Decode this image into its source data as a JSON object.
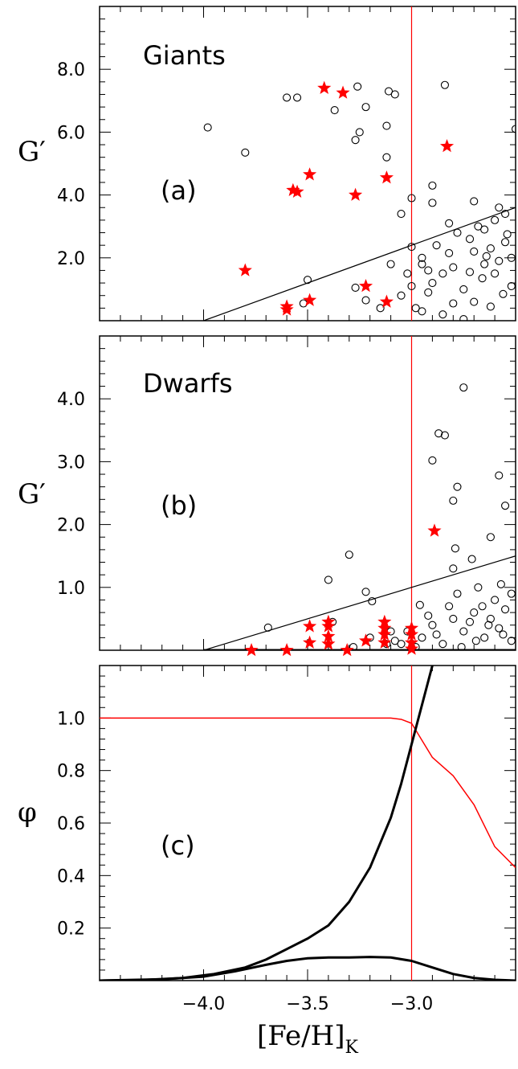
{
  "chart_data": [
    {
      "type": "scatter",
      "panel_label": "(a)",
      "annotation": "Giants",
      "ylabel": "G′",
      "xlim": [
        -4.5,
        -2.5
      ],
      "ylim": [
        0,
        10
      ],
      "yticks": [
        "2.0",
        "4.0",
        "6.0",
        "8.0"
      ],
      "ytick_values": [
        2,
        4,
        6,
        8
      ],
      "vline_x": -3.0,
      "boundary_line": [
        [
          -4.0,
          0.0
        ],
        [
          -2.5,
          3.6
        ]
      ],
      "series": [
        {
          "marker": "circle",
          "points": [
            [
              -3.98,
              6.15
            ],
            [
              -3.8,
              5.35
            ],
            [
              -3.6,
              7.1
            ],
            [
              -3.55,
              7.1
            ],
            [
              -3.37,
              6.7
            ],
            [
              -3.22,
              6.8
            ],
            [
              -3.26,
              7.45
            ],
            [
              -3.11,
              7.3
            ],
            [
              -3.08,
              7.2
            ],
            [
              -3.27,
              5.75
            ],
            [
              -3.25,
              6.0
            ],
            [
              -3.12,
              6.2
            ],
            [
              -3.12,
              5.2
            ],
            [
              -3.0,
              3.9
            ],
            [
              -2.84,
              7.5
            ],
            [
              -2.9,
              4.3
            ],
            [
              -2.9,
              3.75
            ],
            [
              -3.05,
              3.4
            ],
            [
              -2.5,
              6.1
            ],
            [
              -3.5,
              1.3
            ],
            [
              -3.27,
              1.05
            ],
            [
              -3.22,
              0.65
            ],
            [
              -3.52,
              0.55
            ],
            [
              -3.15,
              0.4
            ],
            [
              -3.0,
              2.35
            ],
            [
              -3.0,
              1.1
            ],
            [
              -2.95,
              2.0
            ],
            [
              -2.95,
              1.8
            ],
            [
              -2.85,
              1.5
            ],
            [
              -2.9,
              1.2
            ],
            [
              -2.8,
              1.7
            ],
            [
              -2.75,
              1.0
            ],
            [
              -2.7,
              2.2
            ],
            [
              -2.7,
              0.6
            ],
            [
              -2.65,
              1.8
            ],
            [
              -2.65,
              2.9
            ],
            [
              -2.6,
              3.2
            ],
            [
              -2.6,
              1.5
            ],
            [
              -2.55,
              2.5
            ],
            [
              -2.55,
              3.4
            ],
            [
              -2.52,
              1.1
            ],
            [
              -2.52,
              2.0
            ],
            [
              -2.58,
              3.6
            ],
            [
              -2.62,
              2.3
            ],
            [
              -2.68,
              3.0
            ],
            [
              -2.72,
              2.6
            ],
            [
              -2.78,
              2.8
            ],
            [
              -2.82,
              3.1
            ],
            [
              -2.88,
              2.4
            ],
            [
              -2.92,
              0.9
            ],
            [
              -2.98,
              0.4
            ],
            [
              -3.02,
              1.5
            ],
            [
              -3.05,
              0.8
            ],
            [
              -3.1,
              1.8
            ],
            [
              -2.7,
              3.8
            ],
            [
              -2.85,
              0.2
            ],
            [
              -2.75,
              0.05
            ],
            [
              -2.62,
              0.45
            ],
            [
              -2.58,
              1.9
            ],
            [
              -2.56,
              0.85
            ],
            [
              -2.66,
              1.35
            ],
            [
              -2.8,
              0.55
            ],
            [
              -2.95,
              0.3
            ],
            [
              -2.92,
              1.6
            ],
            [
              -2.82,
              2.15
            ],
            [
              -2.72,
              1.55
            ],
            [
              -2.64,
              2.05
            ],
            [
              -2.54,
              2.75
            ]
          ]
        },
        {
          "marker": "star",
          "color": "#ff0000",
          "points": [
            [
              -3.42,
              7.4
            ],
            [
              -3.33,
              7.25
            ],
            [
              -2.83,
              5.55
            ],
            [
              -3.49,
              4.65
            ],
            [
              -3.12,
              4.55
            ],
            [
              -3.57,
              4.15
            ],
            [
              -3.55,
              4.1
            ],
            [
              -3.27,
              4.0
            ],
            [
              -3.8,
              1.6
            ],
            [
              -3.22,
              1.1
            ],
            [
              -3.49,
              0.65
            ],
            [
              -3.6,
              0.45
            ],
            [
              -3.6,
              0.35
            ],
            [
              -3.12,
              0.6
            ]
          ]
        }
      ]
    },
    {
      "type": "scatter",
      "panel_label": "(b)",
      "annotation": "Dwarfs",
      "ylabel": "G′",
      "xlim": [
        -4.5,
        -2.5
      ],
      "ylim": [
        0,
        5
      ],
      "yticks": [
        "1.0",
        "2.0",
        "3.0",
        "4.0"
      ],
      "ytick_values": [
        1,
        2,
        3,
        4
      ],
      "vline_x": -3.0,
      "boundary_line": [
        [
          -4.0,
          0.0
        ],
        [
          -2.5,
          1.5
        ]
      ],
      "series": [
        {
          "marker": "circle",
          "points": [
            [
              -3.69,
              0.36
            ],
            [
              -3.3,
              1.52
            ],
            [
              -3.4,
              1.12
            ],
            [
              -3.22,
              0.93
            ],
            [
              -3.19,
              0.78
            ],
            [
              -3.38,
              0.45
            ],
            [
              -3.1,
              0.3
            ],
            [
              -3.05,
              0.1
            ],
            [
              -2.96,
              0.72
            ],
            [
              -2.9,
              3.02
            ],
            [
              -2.87,
              3.45
            ],
            [
              -2.84,
              3.42
            ],
            [
              -2.78,
              2.6
            ],
            [
              -2.75,
              4.18
            ],
            [
              -2.79,
              1.62
            ],
            [
              -2.71,
              1.45
            ],
            [
              -2.58,
              2.78
            ],
            [
              -2.55,
              2.3
            ],
            [
              -2.62,
              1.8
            ],
            [
              -2.8,
              1.3
            ],
            [
              -2.8,
              2.38
            ],
            [
              -2.95,
              0.2
            ],
            [
              -2.9,
              0.4
            ],
            [
              -2.85,
              0.1
            ],
            [
              -2.8,
              0.5
            ],
            [
              -2.78,
              0.9
            ],
            [
              -2.75,
              0.3
            ],
            [
              -2.7,
              0.6
            ],
            [
              -2.68,
              1.0
            ],
            [
              -2.65,
              0.2
            ],
            [
              -2.62,
              0.5
            ],
            [
              -2.6,
              0.8
            ],
            [
              -2.58,
              0.35
            ],
            [
              -2.55,
              0.65
            ],
            [
              -2.52,
              0.15
            ],
            [
              -2.52,
              0.9
            ],
            [
              -2.57,
              1.05
            ],
            [
              -2.66,
              0.7
            ],
            [
              -2.72,
              0.45
            ],
            [
              -2.82,
              0.7
            ],
            [
              -2.88,
              0.25
            ],
            [
              -2.92,
              0.55
            ],
            [
              -2.98,
              0.05
            ],
            [
              -3.02,
              0.3
            ],
            [
              -3.08,
              0.15
            ],
            [
              -3.12,
              0.1
            ],
            [
              -3.2,
              0.2
            ],
            [
              -3.28,
              0.05
            ],
            [
              -2.76,
              0.05
            ],
            [
              -2.69,
              0.15
            ],
            [
              -2.63,
              0.4
            ],
            [
              -2.56,
              0.25
            ]
          ]
        },
        {
          "marker": "star",
          "color": "#ff0000",
          "points": [
            [
              -2.89,
              1.9
            ],
            [
              -3.77,
              0.0
            ],
            [
              -3.6,
              0.0
            ],
            [
              -3.31,
              0.0
            ],
            [
              -3.49,
              0.38
            ],
            [
              -3.49,
              0.12
            ],
            [
              -3.4,
              0.45
            ],
            [
              -3.4,
              0.38
            ],
            [
              -3.4,
              0.22
            ],
            [
              -3.4,
              0.1
            ],
            [
              -3.22,
              0.15
            ],
            [
              -3.13,
              0.45
            ],
            [
              -3.13,
              0.35
            ],
            [
              -3.13,
              0.25
            ],
            [
              -3.13,
              0.12
            ],
            [
              -3.0,
              0.35
            ],
            [
              -3.0,
              0.25
            ],
            [
              -3.0,
              0.12
            ],
            [
              -3.0,
              0.02
            ]
          ]
        }
      ]
    },
    {
      "type": "line",
      "panel_label": "(c)",
      "ylabel": "φ",
      "xlabel": "[Fe/H]",
      "xlabel_subscript": "K",
      "xlim": [
        -4.5,
        -2.5
      ],
      "ylim": [
        0,
        1.2
      ],
      "xticks": [
        "−4.0",
        "−3.5",
        "−3.0"
      ],
      "xtick_values": [
        -4.0,
        -3.5,
        -3.0
      ],
      "yticks": [
        "0.2",
        "0.4",
        "0.6",
        "0.8",
        "1.0"
      ],
      "ytick_values": [
        0.2,
        0.4,
        0.6,
        0.8,
        1.0
      ],
      "vline_x": -3.0,
      "series": [
        {
          "color": "#ff0000",
          "width": 1.5,
          "points": [
            [
              -4.5,
              1.0
            ],
            [
              -3.1,
              1.0
            ],
            [
              -3.05,
              0.995
            ],
            [
              -3.0,
              0.98
            ],
            [
              -2.9,
              0.85
            ],
            [
              -2.8,
              0.78
            ],
            [
              -2.7,
              0.67
            ],
            [
              -2.6,
              0.51
            ],
            [
              -2.5,
              0.43
            ]
          ]
        },
        {
          "color": "#000000",
          "width": 3,
          "points": [
            [
              -4.5,
              0.0
            ],
            [
              -4.3,
              0.002
            ],
            [
              -4.1,
              0.01
            ],
            [
              -3.95,
              0.025
            ],
            [
              -3.8,
              0.05
            ],
            [
              -3.7,
              0.08
            ],
            [
              -3.6,
              0.12
            ],
            [
              -3.5,
              0.16
            ],
            [
              -3.4,
              0.21
            ],
            [
              -3.3,
              0.3
            ],
            [
              -3.2,
              0.43
            ],
            [
              -3.1,
              0.62
            ],
            [
              -3.05,
              0.75
            ],
            [
              -3.0,
              0.9
            ],
            [
              -2.95,
              1.05
            ],
            [
              -2.9,
              1.2
            ]
          ]
        },
        {
          "color": "#000000",
          "width": 3,
          "points": [
            [
              -4.5,
              0.0
            ],
            [
              -4.2,
              0.005
            ],
            [
              -4.0,
              0.015
            ],
            [
              -3.85,
              0.035
            ],
            [
              -3.7,
              0.06
            ],
            [
              -3.6,
              0.075
            ],
            [
              -3.5,
              0.085
            ],
            [
              -3.4,
              0.088
            ],
            [
              -3.3,
              0.088
            ],
            [
              -3.2,
              0.09
            ],
            [
              -3.1,
              0.088
            ],
            [
              -3.0,
              0.075
            ],
            [
              -2.9,
              0.05
            ],
            [
              -2.8,
              0.025
            ],
            [
              -2.7,
              0.01
            ],
            [
              -2.6,
              0.003
            ],
            [
              -2.5,
              0.0
            ]
          ]
        }
      ]
    }
  ]
}
